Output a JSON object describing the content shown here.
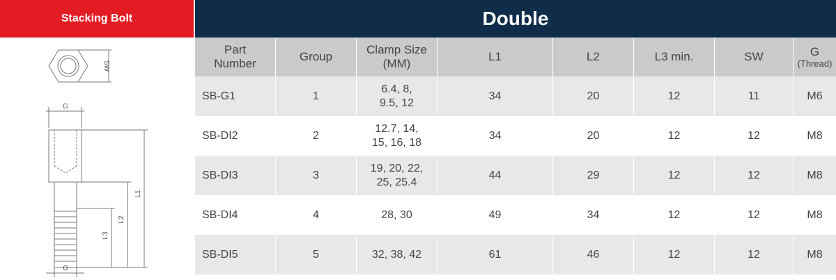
{
  "left_header": "Stacking Bolt",
  "drawing": {
    "labels": {
      "sw": "SW",
      "g_top": "G",
      "g_bottom": "G",
      "l1": "L1",
      "l2": "L2",
      "l3": "L3"
    }
  },
  "table": {
    "title": "Double",
    "columns": [
      "Part\nNumber",
      "Group",
      "Clamp Size\n(MM)",
      "L1",
      "L2",
      "L3 min.",
      "SW",
      {
        "label": "G",
        "sub": "(Thread)"
      }
    ],
    "rows": [
      [
        "SB-G1",
        "1",
        "6.4, 8,\n9.5, 12",
        "34",
        "20",
        "12",
        "11",
        "M6"
      ],
      [
        "SB-DI2",
        "2",
        "12.7, 14,\n15, 16, 18",
        "34",
        "20",
        "12",
        "12",
        "M8"
      ],
      [
        "SB-DI3",
        "3",
        "19, 20, 22,\n25, 25.4",
        "44",
        "29",
        "12",
        "12",
        "M8"
      ],
      [
        "SB-DI4",
        "4",
        "28, 30",
        "49",
        "34",
        "12",
        "12",
        "M8"
      ],
      [
        "SB-DI5",
        "5",
        "32, 38, 42",
        "61",
        "46",
        "12",
        "12",
        "M8"
      ]
    ]
  }
}
